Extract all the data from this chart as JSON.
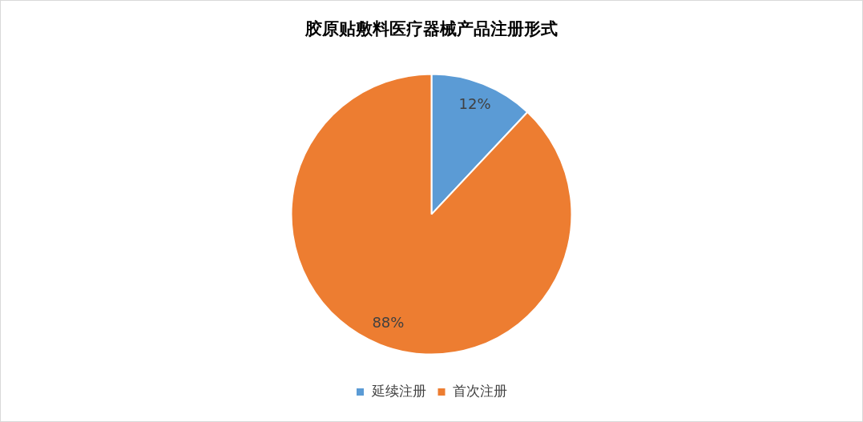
{
  "chart_data": {
    "type": "pie",
    "title": "胶原贴敷料医疗器械产品注册形式",
    "categories": [
      "延续注册",
      "首次注册"
    ],
    "values": [
      12,
      88
    ],
    "colors": [
      "#5b9bd5",
      "#ed7d31"
    ],
    "value_labels": [
      "12%",
      "88%"
    ],
    "legend": "bottom"
  }
}
